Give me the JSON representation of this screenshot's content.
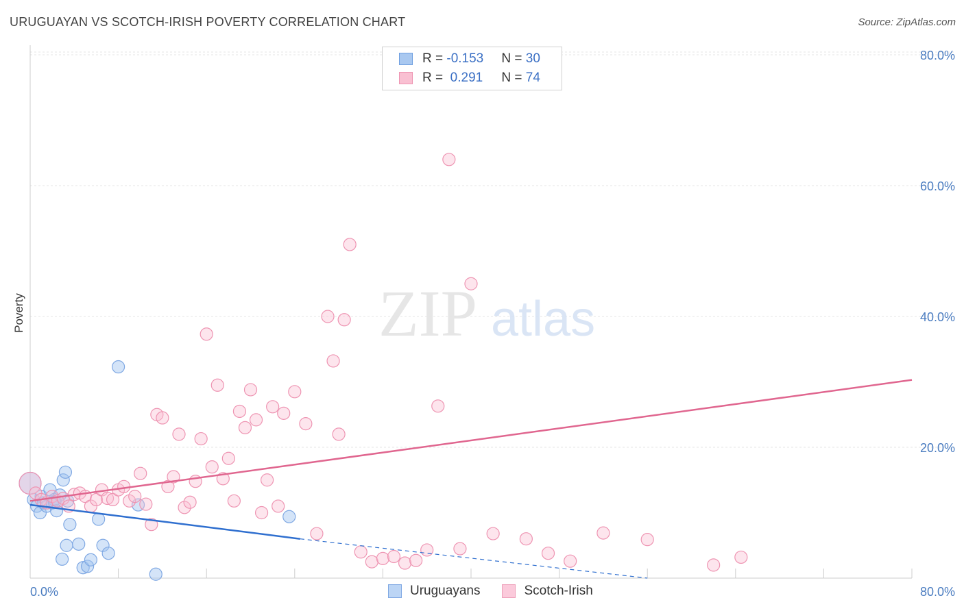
{
  "title": "URUGUAYAN VS SCOTCH-IRISH POVERTY CORRELATION CHART",
  "source": "Source: ZipAtlas.com",
  "watermark": {
    "zip": "ZIP",
    "atlas": "atlas"
  },
  "legend": {
    "rows": [
      {
        "r_label": "R = ",
        "r_value": "-0.153",
        "n_label": "N = ",
        "n_value": "30",
        "color": "#a9c8f0",
        "border": "#6f9fe0"
      },
      {
        "r_label": "R = ",
        "r_value": " 0.291",
        "n_label": "N = ",
        "n_value": "74",
        "color": "#f9c0d2",
        "border": "#ee94b2"
      }
    ]
  },
  "bottom_legend": [
    {
      "label": "Uruguayans",
      "color": "#bcd5f5",
      "border": "#7fa8e3"
    },
    {
      "label": "Scotch-Irish",
      "color": "#fbcadb",
      "border": "#eea0ba"
    }
  ],
  "chart_data": {
    "type": "scatter",
    "title": "URUGUAYAN VS SCOTCH-IRISH POVERTY CORRELATION CHART",
    "xlabel": "",
    "ylabel": "Poverty",
    "xlim": [
      0,
      80
    ],
    "ylim": [
      0,
      80
    ],
    "x_tick_labels": [
      "0.0%",
      "80.0%"
    ],
    "y_tick_labels": [
      "20.0%",
      "40.0%",
      "60.0%",
      "80.0%"
    ],
    "y_ticks": [
      20,
      40,
      60,
      80
    ],
    "grid": true,
    "series": [
      {
        "name": "Uruguayans",
        "color": "#7fa8e3",
        "fill": "rgba(160,195,240,0.45)",
        "trend_color": "#2f6fcf",
        "trend": {
          "x0": 0,
          "y0": 11.2,
          "x1": 24.5,
          "y1": 6.0,
          "dash_x1": 56,
          "dash_y1": 0.0
        },
        "x": [
          0.0,
          0.3,
          0.6,
          0.9,
          1.0,
          1.2,
          1.5,
          1.8,
          2.0,
          2.2,
          2.4,
          2.7,
          3.0,
          3.2,
          3.4,
          3.6,
          3.3,
          4.4,
          4.8,
          5.2,
          5.5,
          6.6,
          7.1,
          8.0,
          6.2,
          9.8,
          11.4,
          23.5,
          2.9,
          2.2
        ],
        "y": [
          14.5,
          12.0,
          11.0,
          10.0,
          12.5,
          11.5,
          11.0,
          13.5,
          11.5,
          12.0,
          10.3,
          12.7,
          15.0,
          16.2,
          11.8,
          8.2,
          5.0,
          5.2,
          1.6,
          1.8,
          2.8,
          5.0,
          3.8,
          32.3,
          9.0,
          11.2,
          0.6,
          9.4,
          2.9,
          11.6
        ]
      },
      {
        "name": "Scotch-Irish",
        "color": "#ee94b2",
        "fill": "rgba(249,190,210,0.40)",
        "trend_color": "#e0668f",
        "trend": {
          "x0": 0,
          "y0": 11.8,
          "x1": 80,
          "y1": 30.3
        },
        "x": [
          0.0,
          0.5,
          1.0,
          1.5,
          2.0,
          2.5,
          3.0,
          3.5,
          4.0,
          4.5,
          5.0,
          5.5,
          6.0,
          6.5,
          7.0,
          7.5,
          8.0,
          8.5,
          9.0,
          9.5,
          10.0,
          10.5,
          11.0,
          11.5,
          12.0,
          12.5,
          13.0,
          13.5,
          14.0,
          14.5,
          15.0,
          15.5,
          16.0,
          16.5,
          17.0,
          17.5,
          18.0,
          18.5,
          19.0,
          19.5,
          20.0,
          20.5,
          21.0,
          21.5,
          22.0,
          22.5,
          23.0,
          24.0,
          25.0,
          26.0,
          27.0,
          27.5,
          28.0,
          28.5,
          29.0,
          30.0,
          31.0,
          32.0,
          33.0,
          34.0,
          35.0,
          36.0,
          37.0,
          38.0,
          39.0,
          40.0,
          42.0,
          45.0,
          47.0,
          49.0,
          52.0,
          56.0,
          62.0,
          64.5
        ],
        "y": [
          14.5,
          13.0,
          12.0,
          11.5,
          12.5,
          11.8,
          12.2,
          11.0,
          12.8,
          13.0,
          12.5,
          11.0,
          12.0,
          13.5,
          12.2,
          12.0,
          13.5,
          14.0,
          11.8,
          12.5,
          16.0,
          11.3,
          8.2,
          25.0,
          24.5,
          14.0,
          15.5,
          22.0,
          10.8,
          11.6,
          14.8,
          21.3,
          37.3,
          17.0,
          29.5,
          15.2,
          18.3,
          11.8,
          25.5,
          23.0,
          28.8,
          24.2,
          10.0,
          15.0,
          26.2,
          11.0,
          25.2,
          28.5,
          23.6,
          6.8,
          40.0,
          33.2,
          22.0,
          39.5,
          51.0,
          4.0,
          2.5,
          3.0,
          3.3,
          2.3,
          2.7,
          4.3,
          26.3,
          64.0,
          4.5,
          45.0,
          6.8,
          6.0,
          3.8,
          2.6,
          6.9,
          5.9,
          2.0,
          3.2
        ]
      }
    ]
  }
}
